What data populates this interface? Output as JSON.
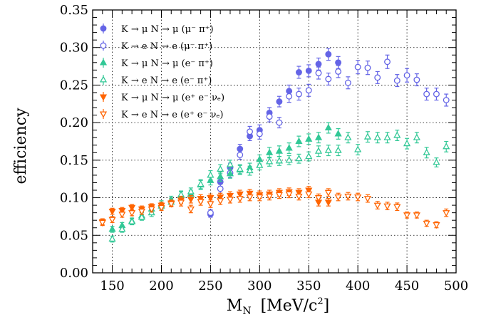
{
  "chart_data": {
    "type": "scatter",
    "xlabel": "M",
    "xlabel_sub": "N",
    "xlabel_unit": "[MeV/c",
    "xlabel_unit_sup": "2",
    "xlabel_unit_close": "]",
    "ylabel": "efficiency",
    "xlim": [
      130,
      500
    ],
    "ylim": [
      0.0,
      0.35
    ],
    "xticks": [
      150,
      200,
      250,
      300,
      350,
      400,
      450,
      500
    ],
    "yticks": [
      0.0,
      0.05,
      0.1,
      0.15,
      0.2,
      0.25,
      0.3,
      0.35
    ],
    "grid": true,
    "legend_position": "top-left",
    "series": [
      {
        "name": "K → μ N → μ (μ⁻ π⁺)",
        "color": "#6464e6",
        "marker": "circle",
        "filled": true,
        "points": [
          {
            "x": 250,
            "y": 0.078,
            "err": 0.004
          },
          {
            "x": 260,
            "y": 0.121,
            "err": 0.006
          },
          {
            "x": 270,
            "y": 0.14,
            "err": 0.006
          },
          {
            "x": 280,
            "y": 0.165,
            "err": 0.006
          },
          {
            "x": 290,
            "y": 0.182,
            "err": 0.006
          },
          {
            "x": 300,
            "y": 0.19,
            "err": 0.007
          },
          {
            "x": 310,
            "y": 0.213,
            "err": 0.007
          },
          {
            "x": 320,
            "y": 0.228,
            "err": 0.007
          },
          {
            "x": 330,
            "y": 0.242,
            "err": 0.008
          },
          {
            "x": 340,
            "y": 0.267,
            "err": 0.008
          },
          {
            "x": 350,
            "y": 0.269,
            "err": 0.008
          },
          {
            "x": 360,
            "y": 0.278,
            "err": 0.008
          },
          {
            "x": 370,
            "y": 0.291,
            "err": 0.008
          },
          {
            "x": 380,
            "y": 0.28,
            "err": 0.008
          }
        ]
      },
      {
        "name": "K → e N → e (μ⁻ π⁺)",
        "color": "#6464e6",
        "marker": "circle",
        "filled": false,
        "points": [
          {
            "x": 250,
            "y": 0.08,
            "err": 0.004
          },
          {
            "x": 260,
            "y": 0.112,
            "err": 0.006
          },
          {
            "x": 270,
            "y": 0.133,
            "err": 0.006
          },
          {
            "x": 280,
            "y": 0.157,
            "err": 0.006
          },
          {
            "x": 290,
            "y": 0.188,
            "err": 0.007
          },
          {
            "x": 300,
            "y": 0.185,
            "err": 0.007
          },
          {
            "x": 310,
            "y": 0.208,
            "err": 0.007
          },
          {
            "x": 320,
            "y": 0.2,
            "err": 0.007
          },
          {
            "x": 330,
            "y": 0.235,
            "err": 0.008
          },
          {
            "x": 340,
            "y": 0.238,
            "err": 0.008
          },
          {
            "x": 350,
            "y": 0.243,
            "err": 0.008
          },
          {
            "x": 360,
            "y": 0.266,
            "err": 0.008
          },
          {
            "x": 370,
            "y": 0.258,
            "err": 0.008
          },
          {
            "x": 380,
            "y": 0.268,
            "err": 0.008
          },
          {
            "x": 390,
            "y": 0.253,
            "err": 0.008
          },
          {
            "x": 400,
            "y": 0.274,
            "err": 0.009
          },
          {
            "x": 410,
            "y": 0.273,
            "err": 0.009
          },
          {
            "x": 420,
            "y": 0.26,
            "err": 0.008
          },
          {
            "x": 430,
            "y": 0.281,
            "err": 0.009
          },
          {
            "x": 440,
            "y": 0.256,
            "err": 0.008
          },
          {
            "x": 450,
            "y": 0.263,
            "err": 0.009
          },
          {
            "x": 460,
            "y": 0.257,
            "err": 0.008
          },
          {
            "x": 470,
            "y": 0.238,
            "err": 0.008
          },
          {
            "x": 480,
            "y": 0.238,
            "err": 0.008
          },
          {
            "x": 490,
            "y": 0.23,
            "err": 0.008
          }
        ]
      },
      {
        "name": "K → μ N → μ (e⁻ π⁺)",
        "color": "#32c896",
        "marker": "triangle-up",
        "filled": true,
        "points": [
          {
            "x": 150,
            "y": 0.058,
            "err": 0.004
          },
          {
            "x": 160,
            "y": 0.063,
            "err": 0.004
          },
          {
            "x": 170,
            "y": 0.069,
            "err": 0.004
          },
          {
            "x": 180,
            "y": 0.076,
            "err": 0.004
          },
          {
            "x": 190,
            "y": 0.085,
            "err": 0.005
          },
          {
            "x": 200,
            "y": 0.091,
            "err": 0.005
          },
          {
            "x": 210,
            "y": 0.097,
            "err": 0.005
          },
          {
            "x": 220,
            "y": 0.103,
            "err": 0.005
          },
          {
            "x": 230,
            "y": 0.105,
            "err": 0.005
          },
          {
            "x": 240,
            "y": 0.117,
            "err": 0.006
          },
          {
            "x": 250,
            "y": 0.123,
            "err": 0.006
          },
          {
            "x": 260,
            "y": 0.128,
            "err": 0.006
          },
          {
            "x": 270,
            "y": 0.132,
            "err": 0.006
          },
          {
            "x": 280,
            "y": 0.137,
            "err": 0.006
          },
          {
            "x": 290,
            "y": 0.14,
            "err": 0.006
          },
          {
            "x": 300,
            "y": 0.151,
            "err": 0.006
          },
          {
            "x": 310,
            "y": 0.16,
            "err": 0.007
          },
          {
            "x": 320,
            "y": 0.162,
            "err": 0.007
          },
          {
            "x": 330,
            "y": 0.166,
            "err": 0.007
          },
          {
            "x": 340,
            "y": 0.175,
            "err": 0.007
          },
          {
            "x": 350,
            "y": 0.178,
            "err": 0.007
          },
          {
            "x": 360,
            "y": 0.18,
            "err": 0.007
          },
          {
            "x": 370,
            "y": 0.193,
            "err": 0.007
          },
          {
            "x": 380,
            "y": 0.185,
            "err": 0.007
          }
        ]
      },
      {
        "name": "K → e N → e (e⁻ π⁺)",
        "color": "#32c896",
        "marker": "triangle-up",
        "filled": false,
        "points": [
          {
            "x": 150,
            "y": 0.045,
            "err": 0.004
          },
          {
            "x": 160,
            "y": 0.058,
            "err": 0.004
          },
          {
            "x": 170,
            "y": 0.068,
            "err": 0.004
          },
          {
            "x": 180,
            "y": 0.074,
            "err": 0.004
          },
          {
            "x": 190,
            "y": 0.08,
            "err": 0.005
          },
          {
            "x": 200,
            "y": 0.089,
            "err": 0.005
          },
          {
            "x": 210,
            "y": 0.094,
            "err": 0.005
          },
          {
            "x": 220,
            "y": 0.104,
            "err": 0.005
          },
          {
            "x": 230,
            "y": 0.108,
            "err": 0.005
          },
          {
            "x": 240,
            "y": 0.118,
            "err": 0.006
          },
          {
            "x": 250,
            "y": 0.13,
            "err": 0.006
          },
          {
            "x": 260,
            "y": 0.138,
            "err": 0.006
          },
          {
            "x": 270,
            "y": 0.144,
            "err": 0.006
          },
          {
            "x": 280,
            "y": 0.138,
            "err": 0.006
          },
          {
            "x": 290,
            "y": 0.136,
            "err": 0.006
          },
          {
            "x": 300,
            "y": 0.143,
            "err": 0.006
          },
          {
            "x": 310,
            "y": 0.148,
            "err": 0.006
          },
          {
            "x": 320,
            "y": 0.149,
            "err": 0.006
          },
          {
            "x": 330,
            "y": 0.15,
            "err": 0.006
          },
          {
            "x": 340,
            "y": 0.152,
            "err": 0.006
          },
          {
            "x": 350,
            "y": 0.155,
            "err": 0.006
          },
          {
            "x": 360,
            "y": 0.162,
            "err": 0.007
          },
          {
            "x": 370,
            "y": 0.163,
            "err": 0.007
          },
          {
            "x": 380,
            "y": 0.163,
            "err": 0.007
          },
          {
            "x": 390,
            "y": 0.18,
            "err": 0.007
          },
          {
            "x": 400,
            "y": 0.164,
            "err": 0.007
          },
          {
            "x": 410,
            "y": 0.181,
            "err": 0.007
          },
          {
            "x": 420,
            "y": 0.18,
            "err": 0.007
          },
          {
            "x": 430,
            "y": 0.18,
            "err": 0.007
          },
          {
            "x": 440,
            "y": 0.183,
            "err": 0.007
          },
          {
            "x": 450,
            "y": 0.172,
            "err": 0.007
          },
          {
            "x": 460,
            "y": 0.18,
            "err": 0.007
          },
          {
            "x": 470,
            "y": 0.16,
            "err": 0.007
          },
          {
            "x": 480,
            "y": 0.147,
            "err": 0.006
          },
          {
            "x": 490,
            "y": 0.168,
            "err": 0.007
          }
        ]
      },
      {
        "name": "K → μ N → μ (e⁺ e⁻ νₑ)",
        "color": "#ff6400",
        "marker": "triangle-down",
        "filled": true,
        "points": [
          {
            "x": 140,
            "y": 0.068,
            "err": 0.004
          },
          {
            "x": 150,
            "y": 0.082,
            "err": 0.004
          },
          {
            "x": 160,
            "y": 0.083,
            "err": 0.004
          },
          {
            "x": 170,
            "y": 0.087,
            "err": 0.004
          },
          {
            "x": 180,
            "y": 0.085,
            "err": 0.004
          },
          {
            "x": 190,
            "y": 0.088,
            "err": 0.004
          },
          {
            "x": 200,
            "y": 0.09,
            "err": 0.004
          },
          {
            "x": 210,
            "y": 0.093,
            "err": 0.004
          },
          {
            "x": 220,
            "y": 0.097,
            "err": 0.005
          },
          {
            "x": 230,
            "y": 0.098,
            "err": 0.005
          },
          {
            "x": 240,
            "y": 0.099,
            "err": 0.005
          },
          {
            "x": 250,
            "y": 0.1,
            "err": 0.005
          },
          {
            "x": 260,
            "y": 0.101,
            "err": 0.005
          },
          {
            "x": 270,
            "y": 0.103,
            "err": 0.005
          },
          {
            "x": 280,
            "y": 0.105,
            "err": 0.005
          },
          {
            "x": 290,
            "y": 0.106,
            "err": 0.005
          },
          {
            "x": 300,
            "y": 0.104,
            "err": 0.005
          },
          {
            "x": 310,
            "y": 0.105,
            "err": 0.005
          },
          {
            "x": 320,
            "y": 0.107,
            "err": 0.005
          },
          {
            "x": 330,
            "y": 0.108,
            "err": 0.005
          },
          {
            "x": 340,
            "y": 0.107,
            "err": 0.005
          },
          {
            "x": 350,
            "y": 0.11,
            "err": 0.005
          },
          {
            "x": 360,
            "y": 0.094,
            "err": 0.005
          },
          {
            "x": 370,
            "y": 0.094,
            "err": 0.005
          }
        ]
      },
      {
        "name": "K → e N → e (e⁺ e⁻ νₑ)",
        "color": "#ff6400",
        "marker": "triangle-down",
        "filled": false,
        "points": [
          {
            "x": 140,
            "y": 0.067,
            "err": 0.004
          },
          {
            "x": 150,
            "y": 0.071,
            "err": 0.004
          },
          {
            "x": 160,
            "y": 0.078,
            "err": 0.004
          },
          {
            "x": 170,
            "y": 0.08,
            "err": 0.004
          },
          {
            "x": 180,
            "y": 0.082,
            "err": 0.004
          },
          {
            "x": 190,
            "y": 0.085,
            "err": 0.004
          },
          {
            "x": 200,
            "y": 0.087,
            "err": 0.004
          },
          {
            "x": 210,
            "y": 0.092,
            "err": 0.004
          },
          {
            "x": 220,
            "y": 0.094,
            "err": 0.005
          },
          {
            "x": 230,
            "y": 0.085,
            "err": 0.005
          },
          {
            "x": 240,
            "y": 0.095,
            "err": 0.005
          },
          {
            "x": 250,
            "y": 0.092,
            "err": 0.005
          },
          {
            "x": 260,
            "y": 0.096,
            "err": 0.005
          },
          {
            "x": 270,
            "y": 0.098,
            "err": 0.005
          },
          {
            "x": 280,
            "y": 0.099,
            "err": 0.005
          },
          {
            "x": 290,
            "y": 0.101,
            "err": 0.005
          },
          {
            "x": 300,
            "y": 0.101,
            "err": 0.005
          },
          {
            "x": 310,
            "y": 0.102,
            "err": 0.005
          },
          {
            "x": 320,
            "y": 0.104,
            "err": 0.005
          },
          {
            "x": 330,
            "y": 0.105,
            "err": 0.005
          },
          {
            "x": 340,
            "y": 0.102,
            "err": 0.005
          },
          {
            "x": 350,
            "y": 0.105,
            "err": 0.005
          },
          {
            "x": 360,
            "y": 0.1,
            "err": 0.005
          },
          {
            "x": 370,
            "y": 0.107,
            "err": 0.005
          },
          {
            "x": 380,
            "y": 0.101,
            "err": 0.005
          },
          {
            "x": 390,
            "y": 0.102,
            "err": 0.005
          },
          {
            "x": 400,
            "y": 0.101,
            "err": 0.005
          },
          {
            "x": 410,
            "y": 0.099,
            "err": 0.005
          },
          {
            "x": 420,
            "y": 0.09,
            "err": 0.005
          },
          {
            "x": 430,
            "y": 0.089,
            "err": 0.005
          },
          {
            "x": 440,
            "y": 0.088,
            "err": 0.005
          },
          {
            "x": 450,
            "y": 0.077,
            "err": 0.004
          },
          {
            "x": 460,
            "y": 0.077,
            "err": 0.004
          },
          {
            "x": 470,
            "y": 0.066,
            "err": 0.004
          },
          {
            "x": 480,
            "y": 0.064,
            "err": 0.004
          },
          {
            "x": 490,
            "y": 0.08,
            "err": 0.005
          }
        ]
      }
    ]
  }
}
